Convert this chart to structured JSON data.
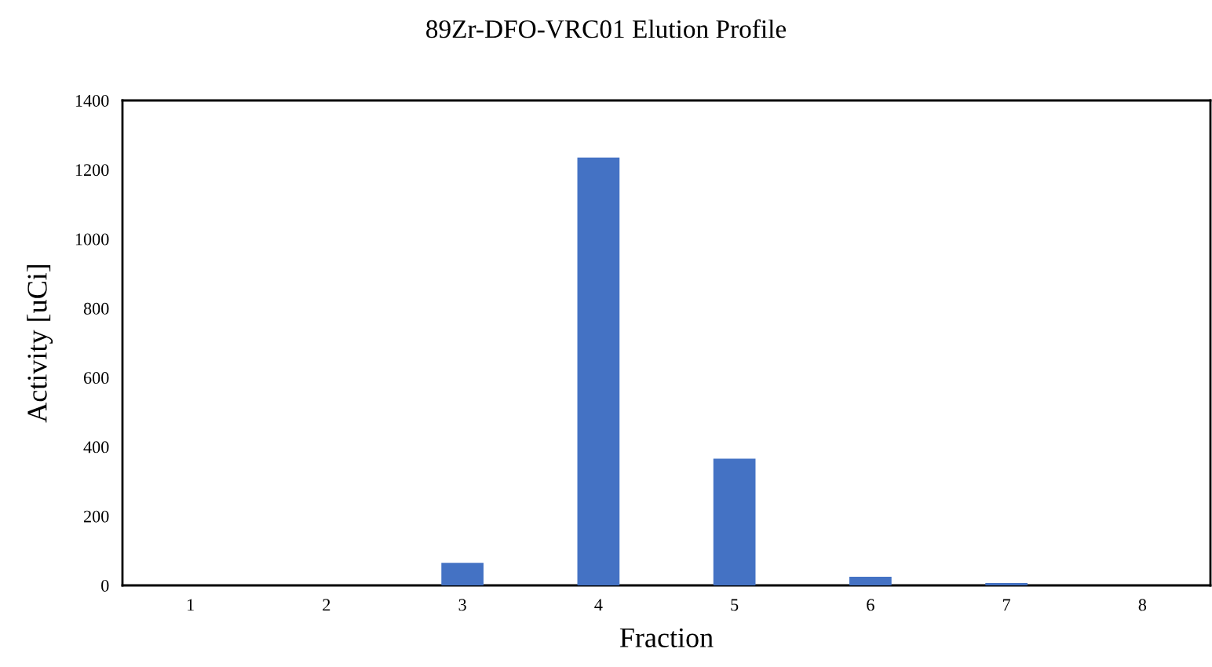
{
  "chart_data": {
    "type": "bar",
    "title": "89Zr-DFO-VRC01 Elution Profile",
    "xlabel": "Fraction",
    "ylabel": "Activity [uCi]",
    "categories": [
      "1",
      "2",
      "3",
      "4",
      "5",
      "6",
      "7",
      "8"
    ],
    "values": [
      0,
      0,
      65,
      1235,
      366,
      25,
      7,
      0
    ],
    "color": "#4472c4",
    "ylim": [
      0,
      1400
    ],
    "yticks": [
      0,
      200,
      400,
      600,
      800,
      1000,
      1200,
      1400
    ],
    "grid": false,
    "legend": false
  }
}
